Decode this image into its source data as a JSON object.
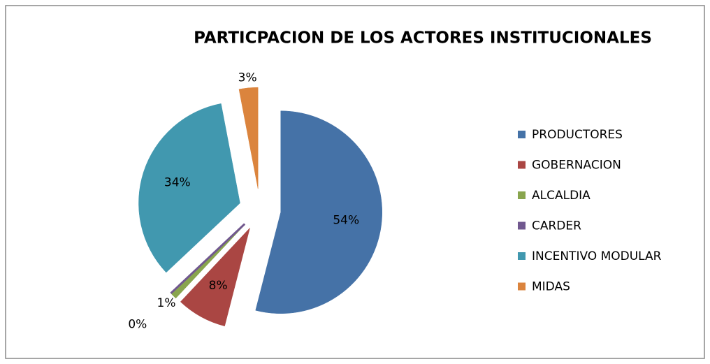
{
  "chart_data": {
    "type": "pie",
    "title": "PARTICPACION DE LOS ACTORES INSTITUCIONALES",
    "categories": [
      "PRODUCTORES",
      "GOBERNACION",
      "ALCALDIA",
      "CARDER",
      "INCENTIVO MODULAR",
      "MIDAS"
    ],
    "values": [
      54,
      8,
      1,
      0,
      34,
      3
    ],
    "value_labels": [
      "54%",
      "8%",
      "1%",
      "0%",
      "34%",
      "3%"
    ],
    "colors": [
      "#4572a7",
      "#aa4643",
      "#89a54e",
      "#71588f",
      "#4198af",
      "#db843d"
    ],
    "legend": "right"
  }
}
